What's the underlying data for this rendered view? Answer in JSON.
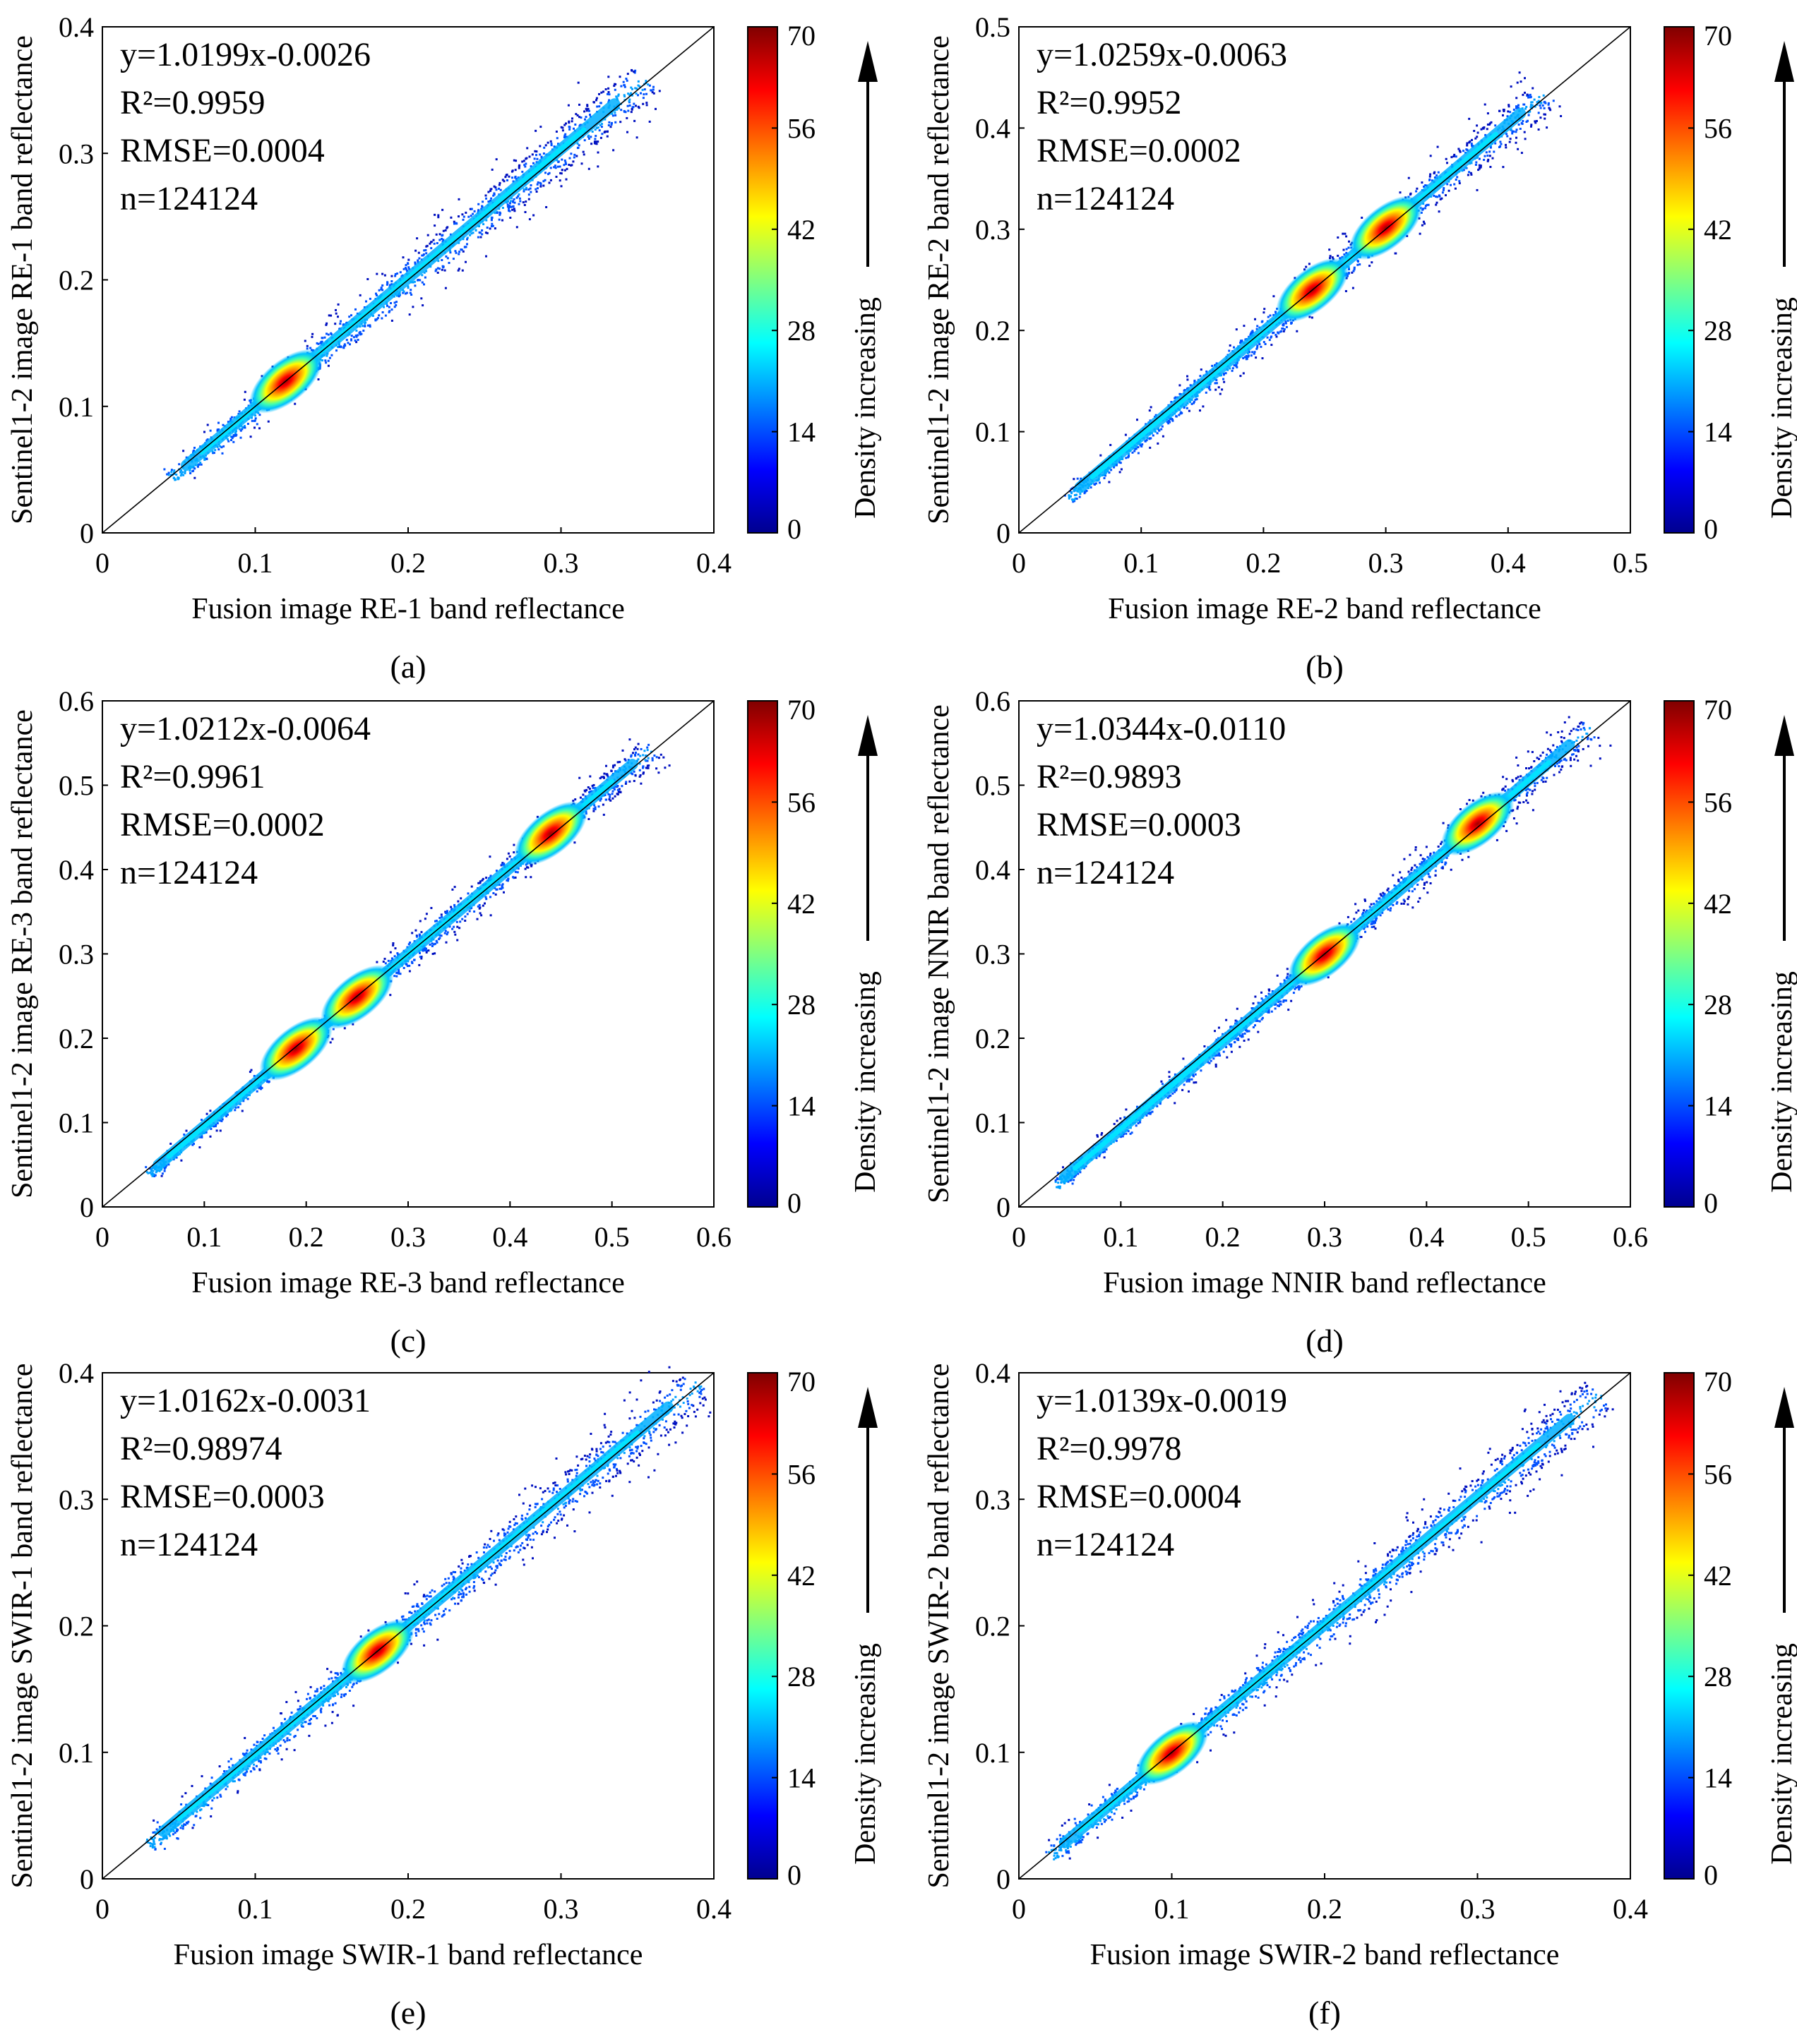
{
  "colors": {
    "background": "#ffffff",
    "axis": "#000000",
    "colormap": [
      "#00008f",
      "#0000ff",
      "#0080ff",
      "#00ffff",
      "#80ff80",
      "#ffff00",
      "#ff8000",
      "#ff0000",
      "#800000"
    ]
  },
  "chart_data": [
    {
      "type": "scatter",
      "panel_label": "(a)",
      "xlabel": "Fusion image RE-1 band reflectance",
      "ylabel": "Sentinel1-2 image RE-1 band reflectance",
      "xlim": [
        0,
        0.4
      ],
      "ylim": [
        0,
        0.4
      ],
      "xticks": [
        "0",
        "0.1",
        "0.2",
        "0.3",
        "0.4"
      ],
      "yticks": [
        "0",
        "0.1",
        "0.2",
        "0.3",
        "0.4"
      ],
      "stats": [
        "y=1.0199x-0.0026",
        "R²=0.9959",
        "RMSE=0.0004",
        "n=124124"
      ],
      "fit": {
        "slope": 1.0199,
        "intercept": -0.0026
      },
      "point_range": [
        0.045,
        0.355
      ],
      "hotspots": [
        0.12
      ],
      "colorbar": {
        "label": "Density increasing",
        "ticks": [
          "0",
          "14",
          "28",
          "42",
          "56",
          "70"
        ]
      }
    },
    {
      "type": "scatter",
      "panel_label": "(b)",
      "xlabel": "Fusion image RE-2 band reflectance",
      "ylabel": "Sentinel1-2 image RE-2 band reflectance",
      "xlim": [
        0,
        0.5
      ],
      "ylim": [
        0,
        0.5
      ],
      "xticks": [
        "0",
        "0.1",
        "0.2",
        "0.3",
        "0.4",
        "0.5"
      ],
      "yticks": [
        "0",
        "0.1",
        "0.2",
        "0.3",
        "0.4",
        "0.5"
      ],
      "stats": [
        "y=1.0259x-0.0063",
        "R²=0.9952",
        "RMSE=0.0002",
        "n=124124"
      ],
      "fit": {
        "slope": 1.0259,
        "intercept": -0.0063
      },
      "point_range": [
        0.04,
        0.43
      ],
      "hotspots": [
        0.24,
        0.3
      ],
      "colorbar": {
        "label": "Density increasing",
        "ticks": [
          "0",
          "14",
          "28",
          "42",
          "56",
          "70"
        ]
      }
    },
    {
      "type": "scatter",
      "panel_label": "(c)",
      "xlabel": "Fusion image RE-3 band reflectance",
      "ylabel": "Sentinel1-2 image RE-3 band reflectance",
      "xlim": [
        0,
        0.6
      ],
      "ylim": [
        0,
        0.6
      ],
      "xticks": [
        "0",
        "0.1",
        "0.2",
        "0.3",
        "0.4",
        "0.5",
        "0.6"
      ],
      "yticks": [
        "0",
        "0.1",
        "0.2",
        "0.3",
        "0.4",
        "0.5",
        "0.6"
      ],
      "stats": [
        "y=1.0212x-0.0064",
        "R²=0.9961",
        "RMSE=0.0002",
        "n=124124"
      ],
      "fit": {
        "slope": 1.0212,
        "intercept": -0.0064
      },
      "point_range": [
        0.045,
        0.54
      ],
      "hotspots": [
        0.19,
        0.25,
        0.44
      ],
      "colorbar": {
        "label": "Density increasing",
        "ticks": [
          "0",
          "14",
          "28",
          "42",
          "56",
          "70"
        ]
      }
    },
    {
      "type": "scatter",
      "panel_label": "(d)",
      "xlabel": "Fusion image NNIR band reflectance",
      "ylabel": "Sentinel1-2 image NNIR band reflectance",
      "xlim": [
        0,
        0.6
      ],
      "ylim": [
        0,
        0.6
      ],
      "xticks": [
        "0",
        "0.1",
        "0.2",
        "0.3",
        "0.4",
        "0.5",
        "0.6"
      ],
      "yticks": [
        "0",
        "0.1",
        "0.2",
        "0.3",
        "0.4",
        "0.5",
        "0.6"
      ],
      "stats": [
        "y=1.0344x-0.0110",
        "R²=0.9893",
        "RMSE=0.0003",
        "n=124124"
      ],
      "fit": {
        "slope": 1.0344,
        "intercept": -0.011
      },
      "point_range": [
        0.035,
        0.56
      ],
      "hotspots": [
        0.3,
        0.45
      ],
      "colorbar": {
        "label": "Density increasing",
        "ticks": [
          "0",
          "14",
          "28",
          "42",
          "56",
          "70"
        ]
      }
    },
    {
      "type": "scatter",
      "panel_label": "(e)",
      "xlabel": "Fusion image SWIR-1 band reflectance",
      "ylabel": "Sentinel1-2 image SWIR-1 band reflectance",
      "xlim": [
        0,
        0.4
      ],
      "ylim": [
        0,
        0.4
      ],
      "xticks": [
        "0",
        "0.1",
        "0.2",
        "0.3",
        "0.4"
      ],
      "yticks": [
        "0",
        "0.1",
        "0.2",
        "0.3",
        "0.4"
      ],
      "stats": [
        "y=1.0162x-0.0031",
        "R²=0.98974",
        "RMSE=0.0003",
        "n=124124"
      ],
      "fit": {
        "slope": 1.0162,
        "intercept": -0.0031
      },
      "point_range": [
        0.03,
        0.39
      ],
      "hotspots": [
        0.18
      ],
      "colorbar": {
        "label": "Density increasing",
        "ticks": [
          "0",
          "14",
          "28",
          "42",
          "56",
          "70"
        ]
      }
    },
    {
      "type": "scatter",
      "panel_label": "(f)",
      "xlabel": "Fusion image SWIR-2 band reflectance",
      "ylabel": "Sentinel1-2 image SWIR-2 band reflectance",
      "xlim": [
        0,
        0.4
      ],
      "ylim": [
        0,
        0.4
      ],
      "xticks": [
        "0",
        "0.1",
        "0.2",
        "0.3",
        "0.4"
      ],
      "yticks": [
        "0",
        "0.1",
        "0.2",
        "0.3",
        "0.4"
      ],
      "stats": [
        "y=1.0139x-0.0019",
        "R²=0.9978",
        "RMSE=0.0004",
        "n=124124"
      ],
      "fit": {
        "slope": 1.0139,
        "intercept": -0.0019
      },
      "point_range": [
        0.02,
        0.38
      ],
      "hotspots": [
        0.1
      ],
      "colorbar": {
        "label": "Density increasing",
        "ticks": [
          "0",
          "14",
          "28",
          "42",
          "56",
          "70"
        ]
      }
    }
  ]
}
